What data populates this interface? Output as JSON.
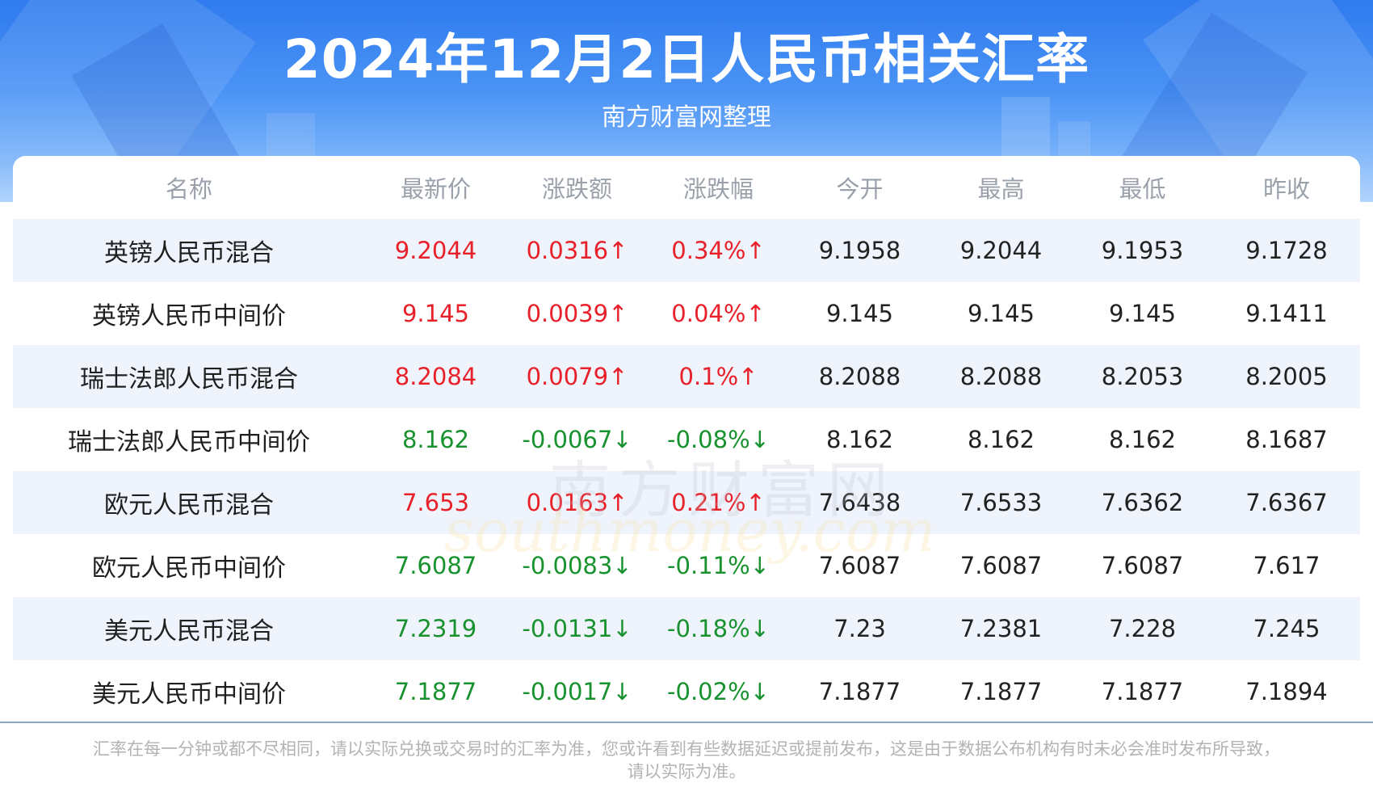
{
  "header": {
    "title": "2024年12月2日人民币相关汇率",
    "subtitle": "南方财富网整理"
  },
  "table": {
    "columns": [
      "名称",
      "最新价",
      "涨跌额",
      "涨跌幅",
      "今开",
      "最高",
      "最低",
      "昨收"
    ],
    "rows": [
      {
        "name": "英镑人民币混合",
        "latest": "9.2044",
        "change": "0.0316↑",
        "change_pct": "0.34%↑",
        "open": "9.1958",
        "high": "9.2044",
        "low": "9.1953",
        "prev_close": "9.1728",
        "direction": "up"
      },
      {
        "name": "英镑人民币中间价",
        "latest": "9.145",
        "change": "0.0039↑",
        "change_pct": "0.04%↑",
        "open": "9.145",
        "high": "9.145",
        "low": "9.145",
        "prev_close": "9.1411",
        "direction": "up"
      },
      {
        "name": "瑞士法郎人民币混合",
        "latest": "8.2084",
        "change": "0.0079↑",
        "change_pct": "0.1%↑",
        "open": "8.2088",
        "high": "8.2088",
        "low": "8.2053",
        "prev_close": "8.2005",
        "direction": "up"
      },
      {
        "name": "瑞士法郎人民币中间价",
        "latest": "8.162",
        "change": "-0.0067↓",
        "change_pct": "-0.08%↓",
        "open": "8.162",
        "high": "8.162",
        "low": "8.162",
        "prev_close": "8.1687",
        "direction": "down"
      },
      {
        "name": "欧元人民币混合",
        "latest": "7.653",
        "change": "0.0163↑",
        "change_pct": "0.21%↑",
        "open": "7.6438",
        "high": "7.6533",
        "low": "7.6362",
        "prev_close": "7.6367",
        "direction": "up"
      },
      {
        "name": "欧元人民币中间价",
        "latest": "7.6087",
        "change": "-0.0083↓",
        "change_pct": "-0.11%↓",
        "open": "7.6087",
        "high": "7.6087",
        "low": "7.6087",
        "prev_close": "7.617",
        "direction": "down"
      },
      {
        "name": "美元人民币混合",
        "latest": "7.2319",
        "change": "-0.0131↓",
        "change_pct": "-0.18%↓",
        "open": "7.23",
        "high": "7.2381",
        "low": "7.228",
        "prev_close": "7.245",
        "direction": "down"
      },
      {
        "name": "美元人民币中间价",
        "latest": "7.1877",
        "change": "-0.0017↓",
        "change_pct": "-0.02%↓",
        "open": "7.1877",
        "high": "7.1877",
        "low": "7.1877",
        "prev_close": "7.1894",
        "direction": "down"
      }
    ]
  },
  "watermark": {
    "cn": "南方财富网",
    "en": "southmoney.com"
  },
  "footer": {
    "disclaimer_line1": "汇率在每一分钟或都不尽相同，请以实际兑换或交易时的汇率为准，您或许看到有些数据延迟或提前发布，这是由于数据公布机构有时未必会准时发布所导致，",
    "disclaimer_line2": "请以实际为准。"
  },
  "colors": {
    "up": "#e8202a",
    "down": "#18922f",
    "header_blue": "#2f7bef",
    "row_alt": "#eef3fc"
  }
}
